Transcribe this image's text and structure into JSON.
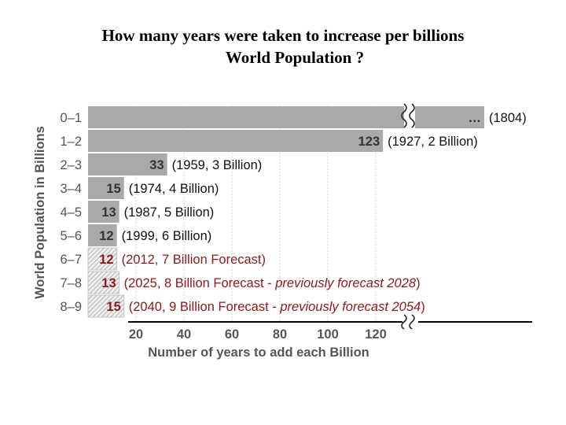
{
  "title_line1": "How many years were taken to increase per billions",
  "title_line2": "World Population ?",
  "colors": {
    "bar_actual": "#a9a9a9",
    "bar_forecast": "#e2e2e2",
    "hatch": "#9a9a9a",
    "annotation_actual": "#111111",
    "annotation_forecast": "#8b1a1a",
    "value_forecast": "#8b1a1a",
    "grid": "#d6d6d6"
  },
  "chart_data": {
    "type": "bar",
    "orientation": "horizontal",
    "xlabel": "Number of years to add each Billion",
    "ylabel": "World Population in Billions",
    "xticks": [
      20,
      40,
      60,
      80,
      100,
      120
    ],
    "axis_break": true,
    "grid": true,
    "categories": [
      "0–1",
      "1–2",
      "2–3",
      "3–4",
      "4–5",
      "5–6",
      "6–7",
      "7–8",
      "8–9"
    ],
    "bars": [
      {
        "category": "0–1",
        "value": null,
        "value_label": "…",
        "annotation": "(1804)",
        "forecast": false,
        "truncated": true
      },
      {
        "category": "1–2",
        "value": 123,
        "value_label": "123",
        "annotation": "(1927, 2 Billion)",
        "forecast": false
      },
      {
        "category": "2–3",
        "value": 33,
        "value_label": "33",
        "annotation": "(1959, 3 Billion)",
        "forecast": false
      },
      {
        "category": "3–4",
        "value": 15,
        "value_label": "15",
        "annotation": "(1974, 4 Billion)",
        "forecast": false
      },
      {
        "category": "4–5",
        "value": 13,
        "value_label": "13",
        "annotation": "(1987, 5 Billion)",
        "forecast": false
      },
      {
        "category": "5–6",
        "value": 12,
        "value_label": "12",
        "annotation": "(1999, 6 Billion)",
        "forecast": false
      },
      {
        "category": "6–7",
        "value": 12,
        "value_label": "12",
        "annotation": "(2012, 7 Billion Forecast)",
        "forecast": true
      },
      {
        "category": "7–8",
        "value": 13,
        "value_label": "13",
        "annotation": "(2025, 8 Billion Forecast - ",
        "annotation_italic": "previously forecast 2028",
        "annotation_end": ")",
        "forecast": true
      },
      {
        "category": "8–9",
        "value": 15,
        "value_label": "15",
        "annotation": "(2040, 9 Billion Forecast - ",
        "annotation_italic": "previously forecast 2054",
        "annotation_end": ")",
        "forecast": true
      }
    ]
  }
}
